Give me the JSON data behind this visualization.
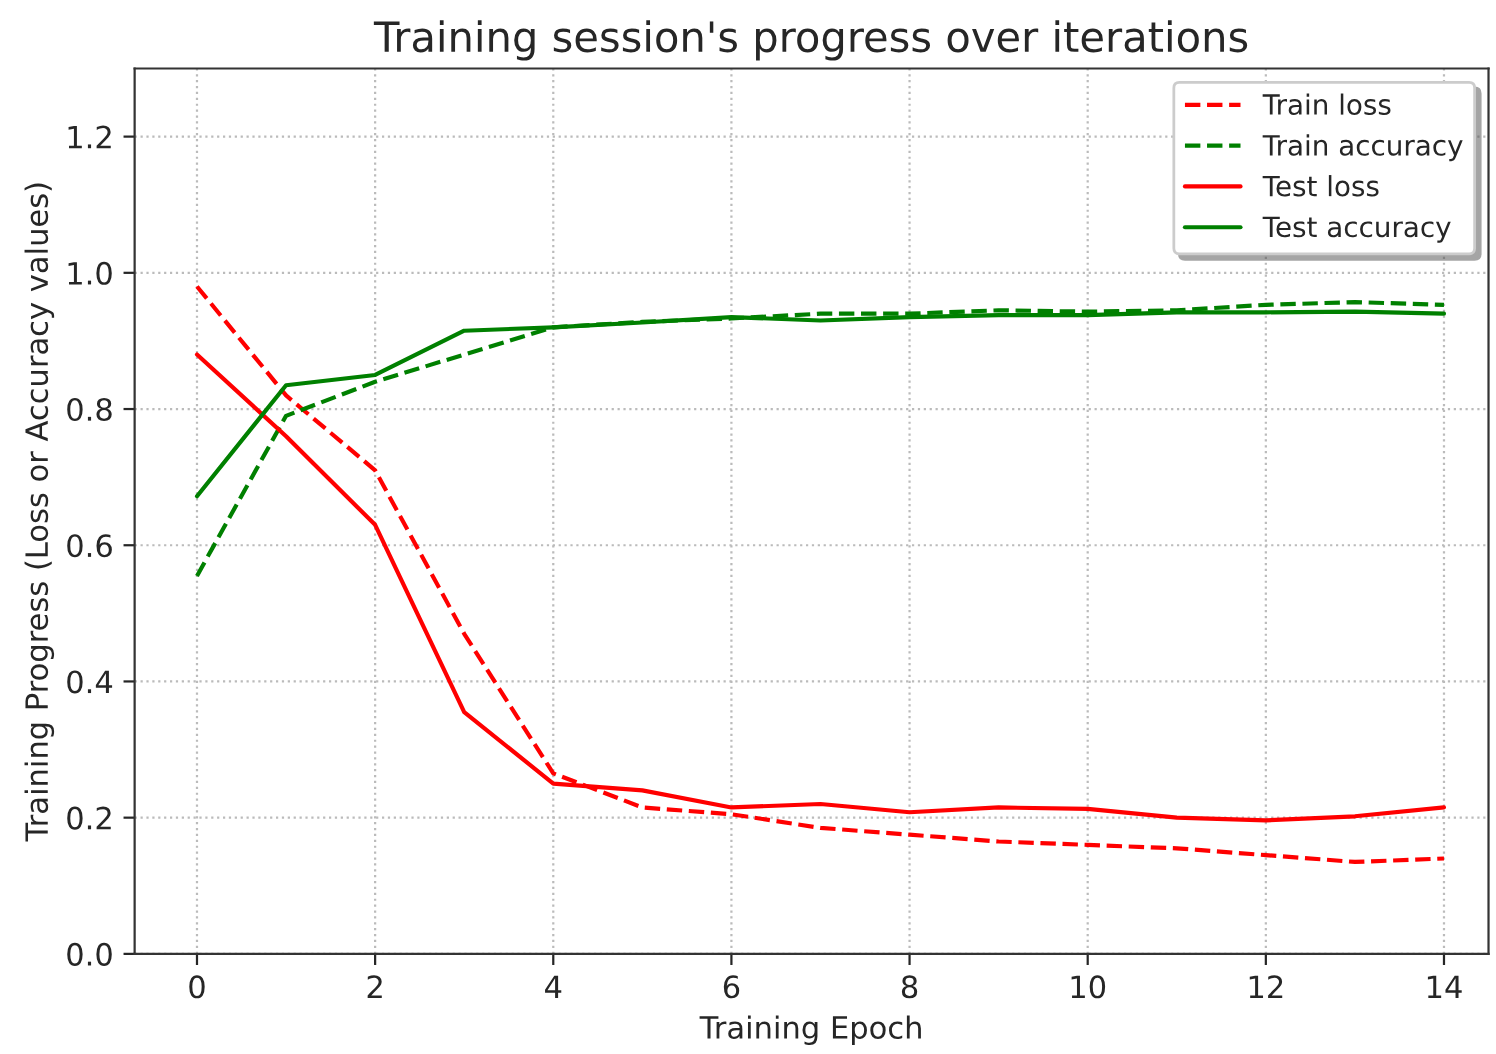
{
  "chart_data": {
    "type": "line",
    "title": "Training session's progress over iterations",
    "xlabel": "Training Epoch",
    "ylabel": "Training Progress (Loss or Accuracy values)",
    "x": [
      0,
      1,
      2,
      3,
      4,
      5,
      6,
      7,
      8,
      9,
      10,
      11,
      12,
      13,
      14
    ],
    "series": [
      {
        "name": "Train loss",
        "color": "#ff0000",
        "line_style": "dashed",
        "values": [
          0.98,
          0.82,
          0.71,
          0.47,
          0.265,
          0.215,
          0.205,
          0.185,
          0.175,
          0.165,
          0.16,
          0.155,
          0.145,
          0.135,
          0.14
        ]
      },
      {
        "name": "Train accuracy",
        "color": "#008000",
        "line_style": "dashed",
        "values": [
          0.555,
          0.79,
          0.84,
          0.88,
          0.92,
          0.928,
          0.933,
          0.94,
          0.94,
          0.945,
          0.943,
          0.945,
          0.953,
          0.957,
          0.953
        ]
      },
      {
        "name": "Test loss",
        "color": "#ff0000",
        "line_style": "solid",
        "values": [
          0.88,
          0.76,
          0.63,
          0.355,
          0.25,
          0.24,
          0.215,
          0.22,
          0.208,
          0.215,
          0.213,
          0.2,
          0.196,
          0.202,
          0.215
        ]
      },
      {
        "name": "Test accuracy",
        "color": "#008000",
        "line_style": "solid",
        "values": [
          0.672,
          0.835,
          0.85,
          0.915,
          0.92,
          0.927,
          0.935,
          0.93,
          0.935,
          0.938,
          0.938,
          0.942,
          0.942,
          0.943,
          0.94
        ]
      }
    ],
    "xlim": [
      -0.7,
      14.5
    ],
    "xticks": [
      0,
      2,
      4,
      6,
      8,
      10,
      12,
      14
    ],
    "ylim": [
      0,
      1.3
    ],
    "yticks": [
      {
        "value": 0,
        "label": "0.0"
      },
      {
        "value": 0.2,
        "label": "0.2"
      },
      {
        "value": 0.4,
        "label": "0.4"
      },
      {
        "value": 0.6,
        "label": "0.6"
      },
      {
        "value": 0.8,
        "label": "0.8"
      },
      {
        "value": 1.0,
        "label": "1.0"
      },
      {
        "value": 1.2,
        "label": "1.2"
      }
    ],
    "grid": true,
    "legend": "top right",
    "marker": "none"
  }
}
